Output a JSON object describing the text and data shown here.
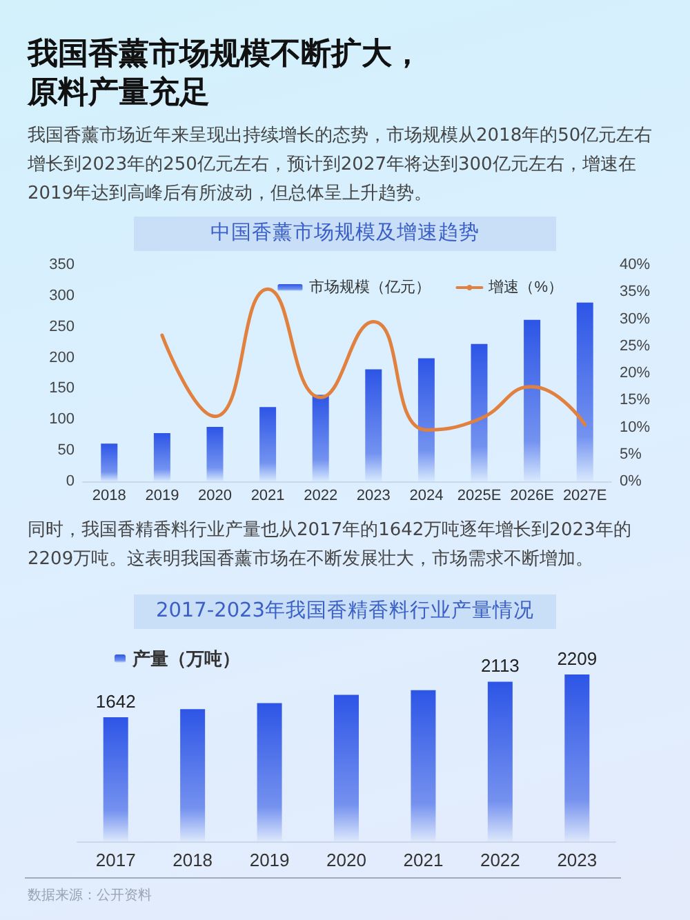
{
  "chart_data": [
    {
      "type": "other",
      "title": "我国香薰市场规模不断扩大，原料产量充足",
      "annotations": [
        "我国香薰市场近年来呈现出持续增长的态势，市场规模从2018年的50亿元左右增长到2023年的250亿元左右，预计到2027年将达到300亿元左右，增速在2019年达到高峰后有所波动，但总体呈上升趋势。"
      ]
    },
    {
      "type": "bar",
      "title": "中国香薰市场规模及增速趋势",
      "categories": [
        "2018",
        "2019",
        "2020",
        "2021",
        "2022",
        "2023",
        "2024",
        "2025E",
        "2026E",
        "2027E"
      ],
      "series": [
        {
          "name": "市场规模（亿元）",
          "type": "bar",
          "color": "#2d55e6",
          "values": [
            61,
            78,
            88,
            120,
            140,
            181,
            199,
            222,
            261,
            289
          ]
        },
        {
          "name": "增速（%）",
          "type": "line",
          "axis": "y2",
          "color": "#e0813f",
          "values": [
            null,
            27,
            12,
            35.5,
            15.5,
            29.5,
            9.5,
            11.5,
            17.5,
            10.5
          ]
        }
      ],
      "ylim": [
        0,
        350
      ],
      "yticks": [
        0,
        50,
        100,
        150,
        200,
        250,
        300,
        350
      ],
      "y2lim": [
        0,
        40
      ],
      "y2ticks": [
        {
          "value": 0,
          "label": "0%"
        },
        {
          "value": 5,
          "label": "5%"
        },
        {
          "value": 10,
          "label": "10%"
        },
        {
          "value": 15,
          "label": "15%"
        },
        {
          "value": 20,
          "label": "20%"
        },
        {
          "value": 25,
          "label": "25%"
        },
        {
          "value": 30,
          "label": "30%"
        },
        {
          "value": 35,
          "label": "35%"
        },
        {
          "value": 40,
          "label": "40%"
        }
      ],
      "legend": "top right",
      "marker": "none"
    },
    {
      "type": "other",
      "annotations": [
        "同时，我国香精香料行业产量也从2017年的1642万吨逐年增长到2023年的2209万吨。这表明我国香薰市场在不断发展壮大，市场需求不断增加。"
      ]
    },
    {
      "type": "bar",
      "title": "2017-2023年我国香精香料行业产量情况",
      "categories": [
        "2017",
        "2018",
        "2019",
        "2020",
        "2021",
        "2022",
        "2023"
      ],
      "series": [
        {
          "name": "产量（万吨）",
          "color": "#2d55e6",
          "values": [
            1642,
            1750,
            1830,
            1940,
            2000,
            2113,
            2209
          ],
          "value_labels": [
            "1642",
            null,
            null,
            null,
            null,
            "2113",
            "2209"
          ]
        }
      ],
      "legend": "top left",
      "tick_labels": "x",
      "annotations": [
        "数据来源：公开资料"
      ]
    }
  ]
}
